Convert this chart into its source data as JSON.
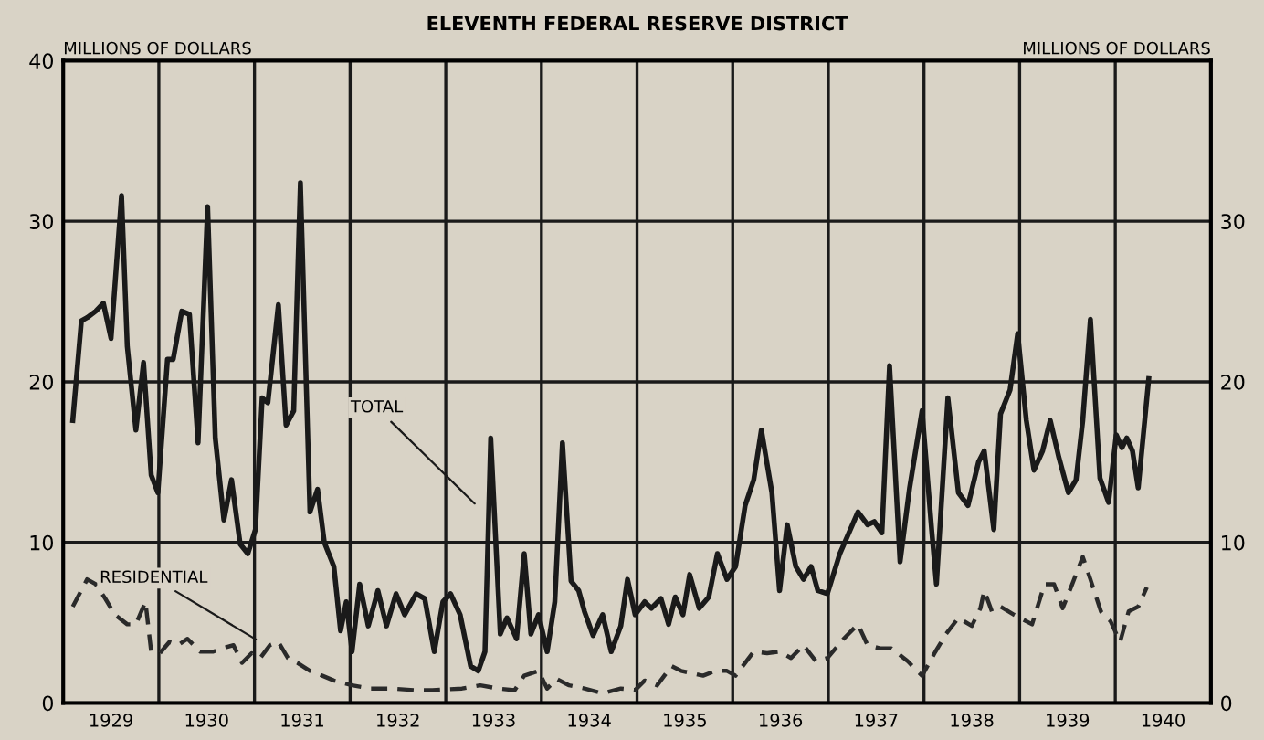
{
  "chart_data": {
    "type": "line",
    "title": "ELEVENTH FEDERAL RESERVE DISTRICT",
    "ylabel": "MILLIONS OF DOLLARS",
    "y2label": "MILLIONS OF DOLLARS",
    "xlim": [
      1929,
      1941
    ],
    "ylim": [
      0,
      40
    ],
    "y2lim": [
      0,
      40
    ],
    "xticks": [
      {
        "value": 1929,
        "label": null
      },
      {
        "value": 1929.5,
        "label": "1929"
      },
      {
        "value": 1930,
        "label": null
      },
      {
        "value": 1930.5,
        "label": "1930"
      },
      {
        "value": 1931,
        "label": null
      },
      {
        "value": 1931.5,
        "label": "1931"
      },
      {
        "value": 1932,
        "label": null
      },
      {
        "value": 1932.5,
        "label": "1932"
      },
      {
        "value": 1933,
        "label": null
      },
      {
        "value": 1933.5,
        "label": "1933"
      },
      {
        "value": 1934,
        "label": null
      },
      {
        "value": 1934.5,
        "label": "1934"
      },
      {
        "value": 1935,
        "label": null
      },
      {
        "value": 1935.5,
        "label": "1935"
      },
      {
        "value": 1936,
        "label": null
      },
      {
        "value": 1936.5,
        "label": "1936"
      },
      {
        "value": 1937,
        "label": null
      },
      {
        "value": 1937.5,
        "label": "1937"
      },
      {
        "value": 1938,
        "label": null
      },
      {
        "value": 1938.5,
        "label": "1938"
      },
      {
        "value": 1939,
        "label": null
      },
      {
        "value": 1939.5,
        "label": "1939"
      },
      {
        "value": 1940,
        "label": null
      },
      {
        "value": 1940.5,
        "label": "1940"
      },
      {
        "value": 1941,
        "label": null
      }
    ],
    "yticks": [
      0,
      10,
      20,
      30,
      40
    ],
    "y2ticks": [
      0,
      10,
      20,
      30
    ],
    "grid": true,
    "marker": "none",
    "series": [
      {
        "color": "#1a1a1a",
        "line_style": "solid",
        "x": [
          1929.1,
          1929.19,
          1929.25,
          1929.34,
          1929.42,
          1929.5,
          1929.61,
          1929.67,
          1929.76,
          1929.84,
          1929.92,
          1929.99,
          1930.09,
          1930.15,
          1930.24,
          1930.32,
          1930.41,
          1930.51,
          1930.59,
          1930.68,
          1930.76,
          1930.85,
          1930.93,
          1931.01,
          1931.08,
          1931.14,
          1931.25,
          1931.33,
          1931.41,
          1931.48,
          1931.58,
          1931.66,
          1931.73,
          1931.83,
          1931.9,
          1931.96,
          1932.02,
          1932.1,
          1932.19,
          1932.29,
          1932.38,
          1932.48,
          1932.57,
          1932.69,
          1932.78,
          1932.88,
          1932.97,
          1933.05,
          1933.15,
          1933.26,
          1933.34,
          1933.41,
          1933.47,
          1933.57,
          1933.64,
          1933.74,
          1933.82,
          1933.89,
          1933.97,
          1934.06,
          1934.14,
          1934.22,
          1934.31,
          1934.39,
          1934.45,
          1934.54,
          1934.64,
          1934.73,
          1934.83,
          1934.9,
          1934.98,
          1935.08,
          1935.15,
          1935.25,
          1935.33,
          1935.4,
          1935.48,
          1935.55,
          1935.65,
          1935.75,
          1935.84,
          1935.94,
          1936.03,
          1936.13,
          1936.22,
          1936.3,
          1936.41,
          1936.49,
          1936.57,
          1936.66,
          1936.74,
          1936.82,
          1936.89,
          1936.99,
          1937.12,
          1937.31,
          1937.41,
          1937.48,
          1937.56,
          1937.64,
          1937.75,
          1937.85,
          1937.98,
          1938.08,
          1938.13,
          1938.25,
          1938.36,
          1938.46,
          1938.57,
          1938.63,
          1938.73,
          1938.8,
          1938.9,
          1938.98,
          1939.07,
          1939.15,
          1939.24,
          1939.32,
          1939.41,
          1939.51,
          1939.59,
          1939.66,
          1939.74,
          1939.84,
          1939.93,
          1940.01,
          1940.07,
          1940.12,
          1940.18,
          1940.24,
          1940.35
        ],
        "values": [
          17.6,
          23.8,
          24.0,
          24.4,
          24.9,
          22.7,
          31.6,
          22.2,
          17.0,
          21.2,
          14.2,
          13.1,
          21.4,
          21.4,
          24.4,
          24.2,
          16.2,
          30.9,
          16.5,
          11.4,
          13.9,
          9.9,
          9.3,
          10.8,
          19.0,
          18.7,
          24.8,
          17.3,
          18.2,
          32.4,
          11.9,
          13.3,
          10.0,
          8.5,
          4.5,
          6.3,
          3.2,
          7.4,
          4.8,
          7.0,
          4.8,
          6.8,
          5.5,
          6.8,
          6.5,
          3.2,
          6.3,
          6.8,
          5.5,
          2.3,
          2.0,
          3.2,
          16.5,
          4.3,
          5.3,
          4.0,
          9.3,
          4.3,
          5.5,
          3.2,
          6.3,
          16.2,
          7.6,
          7.0,
          5.7,
          4.2,
          5.5,
          3.2,
          4.8,
          7.7,
          5.5,
          6.3,
          5.9,
          6.5,
          4.9,
          6.6,
          5.5,
          8.0,
          5.9,
          6.6,
          9.3,
          7.7,
          8.5,
          12.3,
          13.9,
          17.0,
          13.1,
          7.0,
          11.1,
          8.5,
          7.7,
          8.5,
          7.0,
          6.8,
          9.3,
          11.9,
          11.1,
          11.3,
          10.6,
          21.0,
          8.8,
          13.4,
          18.2,
          10.8,
          7.4,
          19.0,
          13.1,
          12.3,
          15.0,
          15.7,
          10.8,
          18.0,
          19.5,
          23.0,
          17.6,
          14.5,
          15.7,
          17.6,
          15.3,
          13.1,
          13.9,
          17.6,
          23.9,
          14.0,
          12.5,
          16.7,
          15.9,
          16.5,
          15.7,
          13.4,
          20.2
        ]
      },
      {
        "color": "#2a2a2a",
        "line_style": "dashed",
        "x": [
          1929.1,
          1929.25,
          1929.34,
          1929.44,
          1929.54,
          1929.67,
          1929.76,
          1929.86,
          1929.92,
          1930.01,
          1930.11,
          1930.2,
          1930.3,
          1930.43,
          1930.57,
          1930.66,
          1930.78,
          1930.87,
          1930.97,
          1931.06,
          1931.16,
          1931.25,
          1931.35,
          1931.45,
          1931.58,
          1931.71,
          1931.83,
          1932.02,
          1932.21,
          1932.44,
          1932.67,
          1932.86,
          1933.17,
          1933.36,
          1933.55,
          1933.72,
          1933.82,
          1933.97,
          1934.06,
          1934.16,
          1934.29,
          1934.45,
          1934.64,
          1934.83,
          1934.98,
          1935.08,
          1935.21,
          1935.36,
          1935.46,
          1935.69,
          1935.82,
          1935.94,
          1936.03,
          1936.13,
          1936.22,
          1936.36,
          1936.49,
          1936.61,
          1936.74,
          1936.87,
          1936.99,
          1937.16,
          1937.31,
          1937.41,
          1937.54,
          1937.66,
          1937.83,
          1937.98,
          1938.12,
          1938.23,
          1938.36,
          1938.5,
          1938.59,
          1938.63,
          1938.71,
          1938.8,
          1938.94,
          1939.13,
          1939.26,
          1939.36,
          1939.45,
          1939.55,
          1939.66,
          1939.74,
          1939.85,
          1939.95,
          1940.05,
          1940.14,
          1940.24,
          1940.33
        ],
        "values": [
          6.0,
          7.7,
          7.4,
          6.5,
          5.5,
          4.9,
          4.9,
          6.3,
          3.2,
          3.1,
          3.8,
          3.6,
          4.0,
          3.2,
          3.2,
          3.4,
          3.6,
          2.5,
          3.1,
          2.8,
          3.6,
          3.8,
          2.8,
          2.5,
          2.0,
          1.7,
          1.4,
          1.1,
          0.9,
          0.9,
          0.8,
          0.8,
          0.9,
          1.1,
          0.9,
          0.8,
          1.7,
          2.0,
          0.9,
          1.5,
          1.1,
          0.9,
          0.6,
          0.9,
          0.8,
          1.4,
          1.1,
          2.3,
          2.0,
          1.7,
          2.0,
          2.0,
          1.7,
          2.5,
          3.2,
          3.1,
          3.2,
          2.8,
          3.6,
          2.6,
          2.8,
          4.0,
          4.9,
          3.6,
          3.4,
          3.4,
          2.6,
          1.7,
          3.2,
          4.3,
          5.3,
          4.8,
          5.9,
          7.0,
          5.7,
          6.0,
          5.5,
          4.9,
          7.4,
          7.4,
          5.9,
          7.4,
          9.1,
          7.7,
          5.7,
          5.1,
          3.8,
          5.7,
          6.0,
          7.2
        ]
      }
    ],
    "annotations": [
      {
        "text": "TOTAL",
        "x": 1933.34,
        "y": 12.2
      },
      {
        "text": "RESIDENTIAL",
        "x": 1931.06,
        "y": 3.8
      }
    ]
  }
}
